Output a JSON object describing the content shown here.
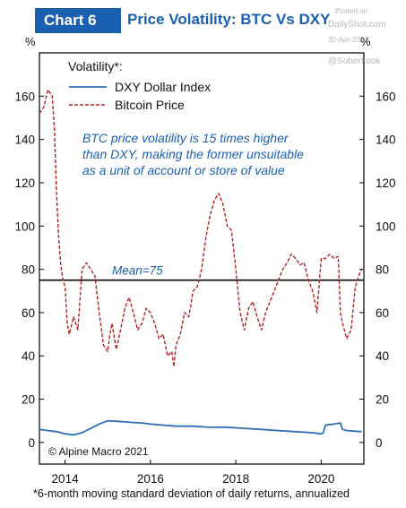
{
  "header": {
    "badge": "Chart 6",
    "title": "Price Volatility: BTC Vs DXY"
  },
  "watermark": {
    "line1": "Posted on",
    "line2": "DailyShot.com",
    "line3": "30-Apr-2021",
    "line4": "@SoberLook"
  },
  "footnote": "*6-month moving standard deviation of daily returns, annualized",
  "chart_data": {
    "type": "line",
    "y_unit_left": "%",
    "y_unit_right": "%",
    "ylim": [
      -10,
      180
    ],
    "yticks": [
      0,
      20,
      40,
      60,
      80,
      100,
      120,
      140,
      160
    ],
    "xlim": [
      2013.4,
      2021.0
    ],
    "xticks": [
      2014,
      2016,
      2018,
      2020
    ],
    "grid": false,
    "legend_title": "Volatility*:",
    "legend_position": "top-left",
    "annotation": "BTC price volatility is 15 times higher than DXY, making the former unsuitable as a unit of account or store of value",
    "annotation_lines": [
      "BTC price volatility is 15 times higher",
      "than DXY, making the former unsuitable",
      "as a unit of account or store of value"
    ],
    "mean_label": "Mean=75",
    "mean_value": 75,
    "source": "© Alpine Macro 2021",
    "colors": {
      "dxy": "#2e6fb8",
      "btc": "#b22222",
      "mean": "#000000",
      "annotation": "#1b5fb0"
    },
    "series": [
      {
        "name": "DXY Dollar Index",
        "style": "solid",
        "x": [
          2013.4,
          2013.6,
          2013.8,
          2014.0,
          2014.2,
          2014.4,
          2014.6,
          2014.8,
          2015.0,
          2015.2,
          2015.4,
          2015.6,
          2015.8,
          2016.0,
          2016.3,
          2016.6,
          2017.0,
          2017.4,
          2017.8,
          2018.2,
          2018.6,
          2019.0,
          2019.4,
          2019.8,
          2020.0,
          2020.05,
          2020.1,
          2020.3,
          2020.45,
          2020.5,
          2020.6,
          2020.8,
          2020.95
        ],
        "values": [
          6,
          5.5,
          5,
          4,
          3.5,
          4.5,
          6.5,
          8.5,
          10,
          9.8,
          9.5,
          9.2,
          9,
          8.5,
          8,
          7.5,
          7.5,
          7,
          7,
          6.5,
          6,
          5.5,
          5,
          4.5,
          4,
          4.5,
          8,
          8.5,
          9,
          6,
          5.5,
          5.2,
          5
        ]
      },
      {
        "name": "Bitcoin Price",
        "style": "dashed",
        "x": [
          2013.4,
          2013.5,
          2013.6,
          2013.7,
          2013.75,
          2013.8,
          2013.85,
          2013.9,
          2013.95,
          2014.0,
          2014.05,
          2014.1,
          2014.2,
          2014.3,
          2014.4,
          2014.5,
          2014.6,
          2014.7,
          2014.8,
          2014.9,
          2015.0,
          2015.05,
          2015.1,
          2015.2,
          2015.3,
          2015.4,
          2015.5,
          2015.6,
          2015.7,
          2015.8,
          2015.9,
          2016.0,
          2016.1,
          2016.2,
          2016.3,
          2016.4,
          2016.5,
          2016.55,
          2016.6,
          2016.7,
          2016.8,
          2016.9,
          2017.0,
          2017.1,
          2017.2,
          2017.3,
          2017.4,
          2017.5,
          2017.6,
          2017.7,
          2017.8,
          2017.9,
          2018.0,
          2018.1,
          2018.2,
          2018.3,
          2018.4,
          2018.5,
          2018.6,
          2018.7,
          2018.8,
          2018.9,
          2019.0,
          2019.1,
          2019.2,
          2019.3,
          2019.4,
          2019.5,
          2019.6,
          2019.7,
          2019.8,
          2019.9,
          2020.0,
          2020.1,
          2020.2,
          2020.3,
          2020.4,
          2020.45,
          2020.5,
          2020.6,
          2020.7,
          2020.8,
          2020.9,
          2020.95
        ],
        "values": [
          152,
          155,
          163,
          160,
          145,
          115,
          95,
          82,
          75,
          72,
          55,
          50,
          58,
          52,
          80,
          83,
          80,
          77,
          60,
          45,
          42,
          50,
          55,
          43,
          52,
          62,
          67,
          60,
          52,
          55,
          62,
          60,
          55,
          48,
          50,
          40,
          42,
          35,
          45,
          50,
          60,
          58,
          70,
          72,
          80,
          95,
          105,
          112,
          115,
          110,
          100,
          98,
          80,
          60,
          52,
          62,
          65,
          58,
          52,
          60,
          65,
          70,
          75,
          80,
          83,
          87,
          85,
          82,
          83,
          75,
          70,
          60,
          85,
          85,
          87,
          85,
          86,
          60,
          55,
          48,
          52,
          72,
          78,
          80
        ]
      }
    ]
  }
}
